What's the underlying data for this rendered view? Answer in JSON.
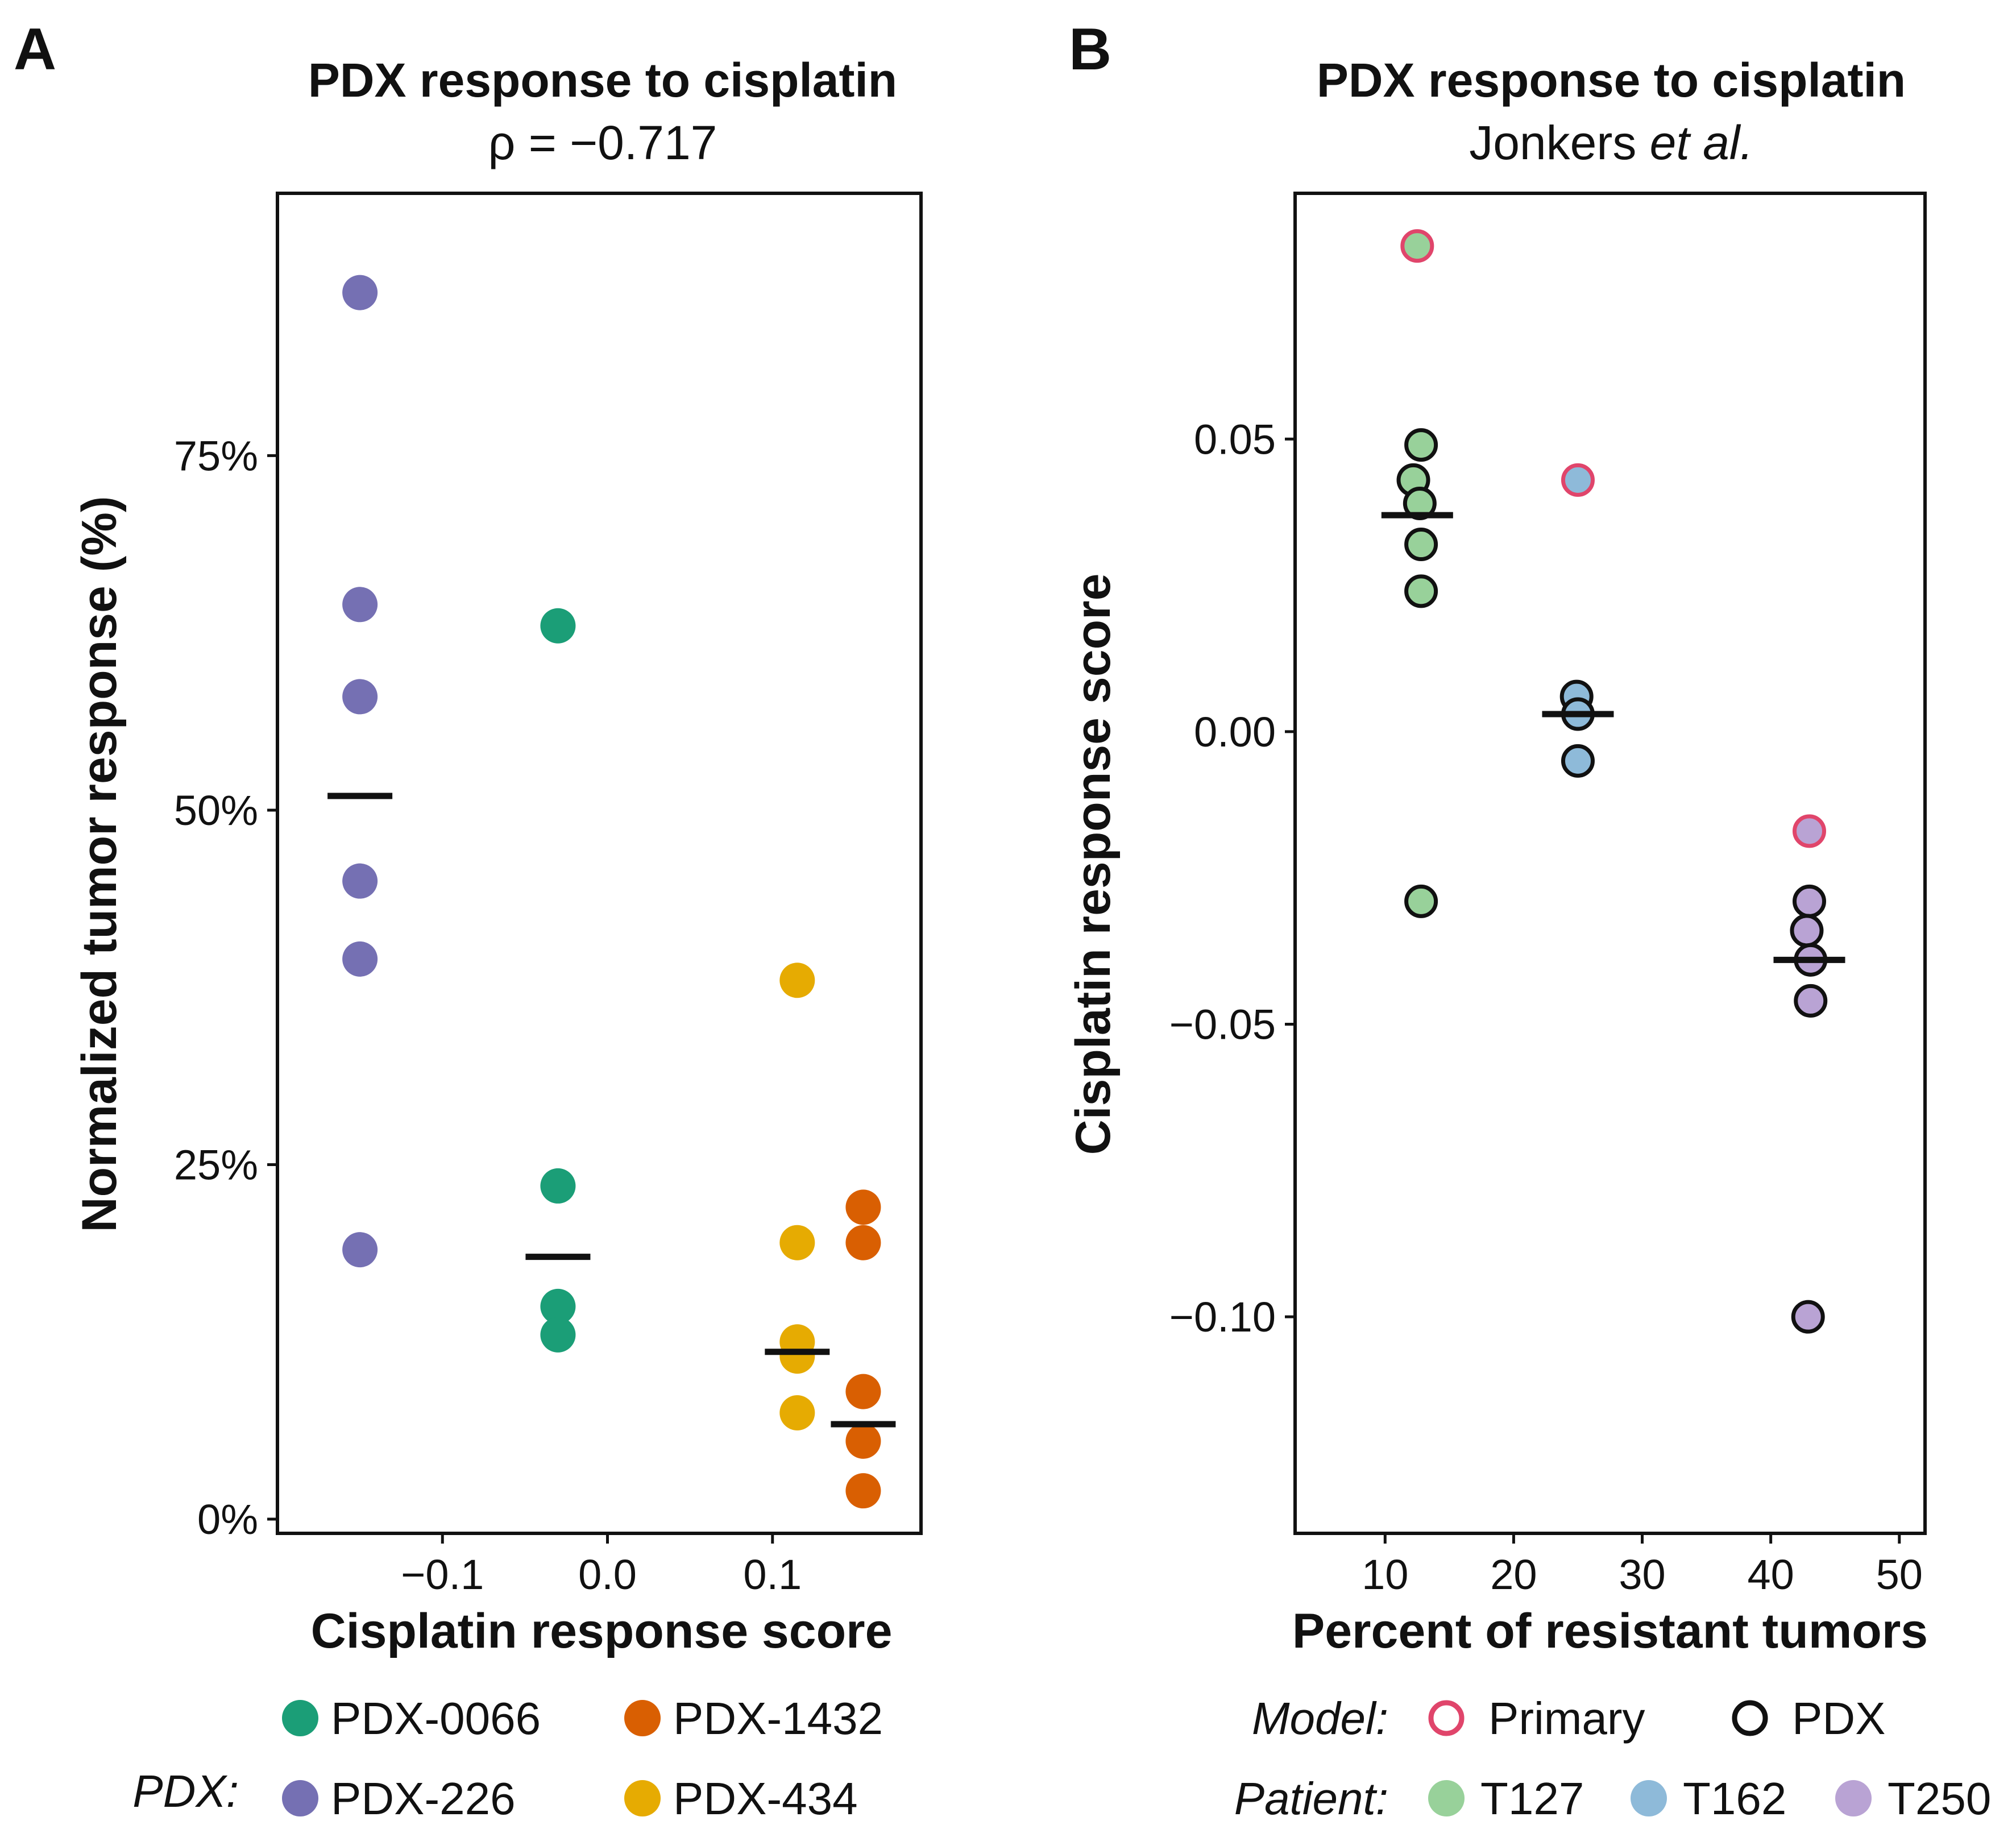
{
  "chart_data": [
    {
      "panel": "A",
      "type": "scatter",
      "title": "PDX response to cisplatin",
      "subtitle": "ρ = −0.717",
      "xlabel": "Cisplatin response score",
      "ylabel": "Normalized tumor response (%)",
      "xlim": [
        -0.2,
        0.19
      ],
      "ylim": [
        -0.01,
        0.935
      ],
      "x_ticks": [
        -0.1,
        0.0,
        0.1
      ],
      "x_tick_labels": [
        "−0.1",
        "0.0",
        "0.1"
      ],
      "y_ticks": [
        0,
        0.25,
        0.5,
        0.75
      ],
      "y_tick_labels": [
        "0%",
        "25%",
        "50%",
        "75%"
      ],
      "legend_title": "PDX:",
      "series": [
        {
          "name": "PDX-0066",
          "color": "#1B9E77",
          "x": -0.03,
          "values": [
            0.63,
            0.235,
            0.15,
            0.13
          ],
          "mean": 0.185
        },
        {
          "name": "PDX-226",
          "color": "#7570B3",
          "x": -0.15,
          "values": [
            0.865,
            0.645,
            0.58,
            0.45,
            0.395,
            0.19
          ],
          "mean": 0.51
        },
        {
          "name": "PDX-1432",
          "color": "#D95F02",
          "x": 0.155,
          "values": [
            0.22,
            0.195,
            0.09,
            0.055,
            0.02
          ],
          "mean": 0.067
        },
        {
          "name": "PDX-434",
          "color": "#E6AB02",
          "x": 0.115,
          "values": [
            0.38,
            0.195,
            0.125,
            0.115,
            0.075
          ],
          "mean": 0.118
        }
      ]
    },
    {
      "panel": "B",
      "type": "scatter",
      "title": "PDX response to cisplatin",
      "subtitle_plain": "Jonkers ",
      "subtitle_italic": "et al.",
      "xlabel": "Percent of resistant tumors",
      "ylabel": "Cisplatin response score",
      "xlim": [
        3,
        52
      ],
      "ylim": [
        -0.137,
        0.092
      ],
      "x_ticks": [
        10,
        20,
        30,
        40,
        50
      ],
      "x_tick_labels": [
        "10",
        "20",
        "30",
        "40",
        "50"
      ],
      "y_ticks": [
        -0.1,
        -0.05,
        0,
        0.05
      ],
      "y_tick_labels": [
        "−0.10",
        "−0.05",
        "0.00",
        "0.05"
      ],
      "model_legend_title": "Model:",
      "model_legend": [
        {
          "name": "Primary",
          "stroke": "#E0456B"
        },
        {
          "name": "PDX",
          "stroke": "#111111"
        }
      ],
      "patient_legend_title": "Patient:",
      "series": [
        {
          "name": "T127",
          "color": "#98D19A",
          "x": 12.5,
          "mean": 0.037,
          "primary": [
            {
              "x": 12.5,
              "y": 0.083
            }
          ],
          "pdx": [
            {
              "x": 12.8,
              "y": 0.049
            },
            {
              "x": 12.2,
              "y": 0.043
            },
            {
              "x": 12.7,
              "y": 0.039
            },
            {
              "x": 12.8,
              "y": 0.032
            },
            {
              "x": 12.8,
              "y": 0.024
            },
            {
              "x": 12.8,
              "y": -0.029
            }
          ]
        },
        {
          "name": "T162",
          "color": "#8EBAD9",
          "x": 25.0,
          "mean": 0.003,
          "primary": [
            {
              "x": 25.0,
              "y": 0.043
            }
          ],
          "pdx": [
            {
              "x": 24.9,
              "y": 0.006
            },
            {
              "x": 25.0,
              "y": 0.003
            },
            {
              "x": 25.0,
              "y": -0.005
            }
          ]
        },
        {
          "name": "T250",
          "color": "#B9A3D4",
          "x": 43.0,
          "mean": -0.039,
          "primary": [
            {
              "x": 43.0,
              "y": -0.017
            }
          ],
          "pdx": [
            {
              "x": 43.0,
              "y": -0.029
            },
            {
              "x": 42.8,
              "y": -0.034
            },
            {
              "x": 43.1,
              "y": -0.039
            },
            {
              "x": 43.1,
              "y": -0.046
            },
            {
              "x": 42.9,
              "y": -0.1
            }
          ]
        }
      ]
    }
  ]
}
